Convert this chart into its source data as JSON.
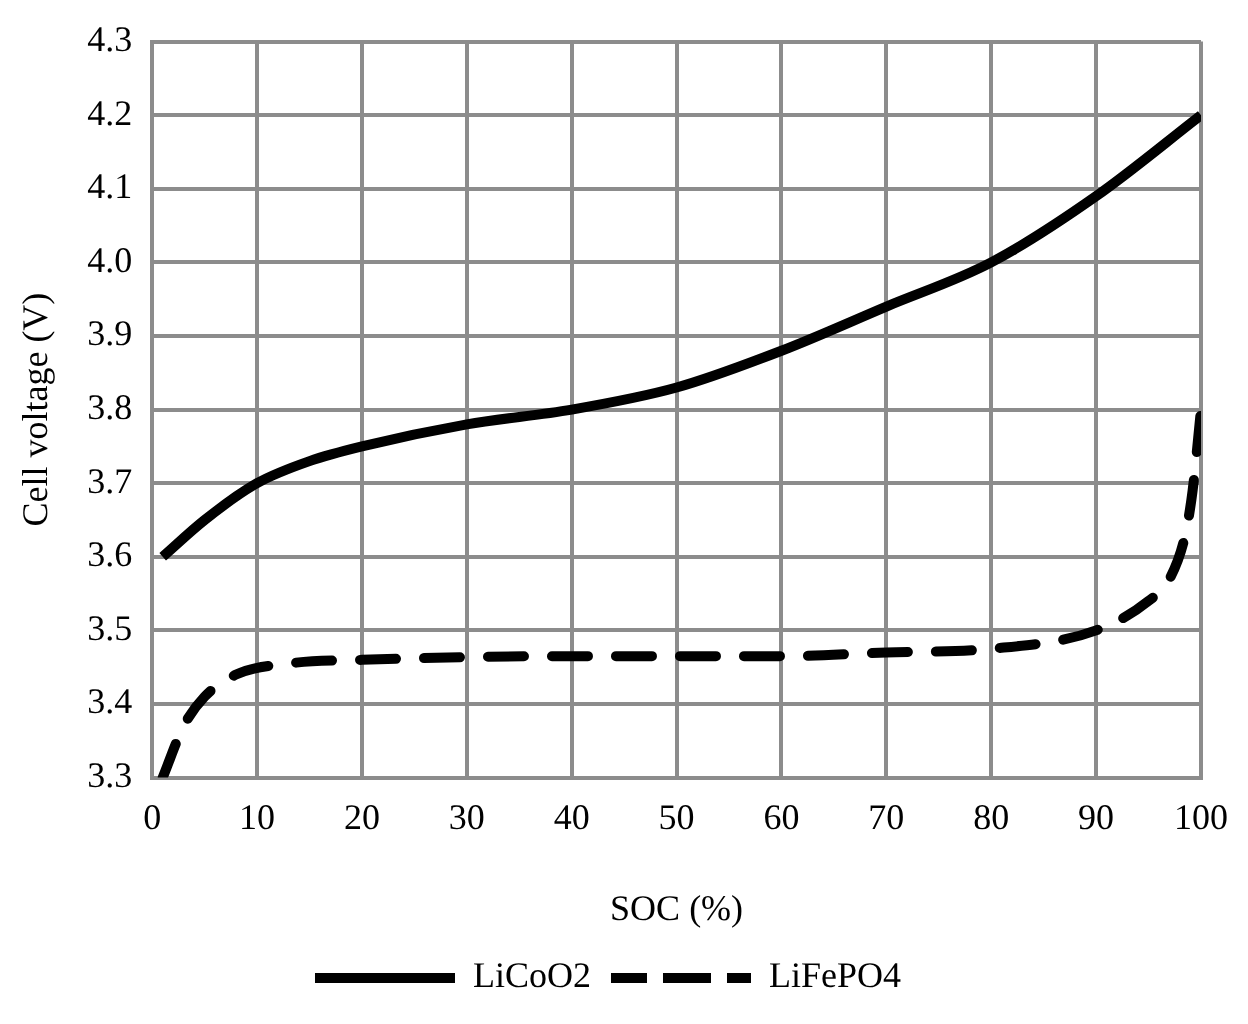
{
  "chart_data": {
    "type": "line",
    "xlabel": "SOC (%)",
    "ylabel": "Cell voltage (V)",
    "xlim": [
      0,
      100
    ],
    "xticks": [
      0,
      10,
      20,
      30,
      40,
      50,
      60,
      70,
      80,
      90,
      100
    ],
    "ylim": [
      3.3,
      4.3
    ],
    "yticks": [
      {
        "value": 3.3,
        "label": "3.3"
      },
      {
        "value": 3.4,
        "label": "3.4"
      },
      {
        "value": 3.5,
        "label": "3.5"
      },
      {
        "value": 3.6,
        "label": "3.6"
      },
      {
        "value": 3.7,
        "label": "3.7"
      },
      {
        "value": 3.8,
        "label": "3.8"
      },
      {
        "value": 3.9,
        "label": "3.9"
      },
      {
        "value": 4.0,
        "label": "4.0"
      },
      {
        "value": 4.1,
        "label": "4.1"
      },
      {
        "value": 4.2,
        "label": "4.2"
      },
      {
        "value": 4.3,
        "label": "4.3"
      }
    ],
    "grid": true,
    "legend": "bottom",
    "marker": "none",
    "series": [
      {
        "name": "LiCoO2",
        "color": "#000000",
        "line_style": "solid",
        "x": [
          1,
          5,
          10,
          15,
          20,
          30,
          40,
          50,
          60,
          70,
          80,
          90,
          100
        ],
        "values": [
          3.6,
          3.65,
          3.7,
          3.73,
          3.75,
          3.78,
          3.8,
          3.83,
          3.88,
          3.94,
          4.0,
          4.09,
          4.2
        ]
      },
      {
        "name": "LiFePO4",
        "color": "#000000",
        "line_style": "dashed",
        "x": [
          1,
          3,
          5,
          8,
          13,
          20,
          40,
          60,
          70,
          80,
          90,
          95,
          97,
          98.5,
          99.2,
          100
        ],
        "values": [
          3.3,
          3.37,
          3.41,
          3.44,
          3.455,
          3.46,
          3.465,
          3.465,
          3.47,
          3.475,
          3.5,
          3.54,
          3.57,
          3.63,
          3.69,
          3.8
        ]
      }
    ]
  }
}
